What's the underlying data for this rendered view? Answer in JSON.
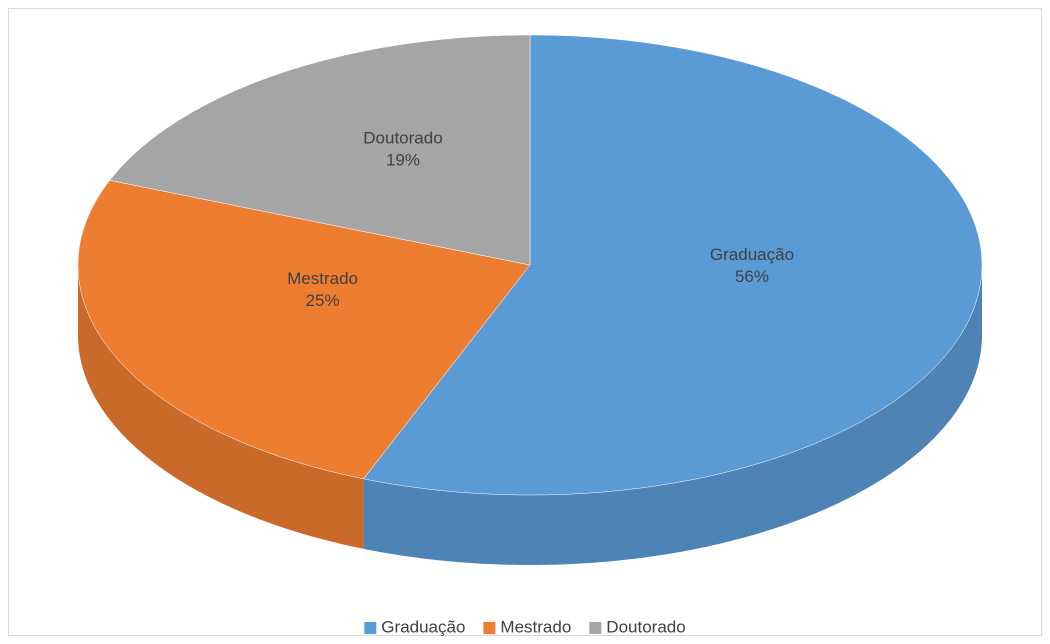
{
  "chart_data": {
    "type": "pie",
    "three_d": true,
    "categories": [
      "Graduação",
      "Mestrado",
      "Doutorado"
    ],
    "values": [
      56,
      25,
      19
    ],
    "value_labels": [
      "56%",
      "25%",
      "19%"
    ],
    "colors": [
      "#5b9bd5",
      "#ed7d31",
      "#a5a5a5"
    ],
    "legend": "bottom"
  }
}
